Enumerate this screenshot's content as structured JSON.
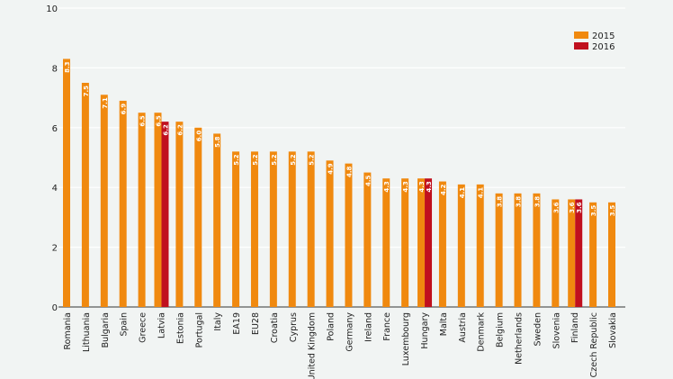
{
  "chart_data": {
    "type": "bar",
    "title": "",
    "xlabel": "",
    "ylabel": "",
    "ylim": [
      0,
      10
    ],
    "yticks": [
      0,
      2,
      4,
      6,
      8,
      10
    ],
    "grid": true,
    "legend_position": "top-right",
    "categories": [
      "Romania",
      "Lithuania",
      "Bulgaria",
      "Spain",
      "Greece",
      "Latvia",
      "Estonia",
      "Portugal",
      "Italy",
      "EA19",
      "EU28",
      "Croatia",
      "Cyprus",
      "United Kingdom",
      "Poland",
      "Germany",
      "Ireland",
      "France",
      "Luxembourg",
      "Hungary",
      "Malta",
      "Austria",
      "Denmark",
      "Belgium",
      "Netherlands",
      "Sweden",
      "Slovenia",
      "Finland",
      "Czech Republic",
      "Slovakia"
    ],
    "series": [
      {
        "name": "2015",
        "color": "#f0890f",
        "values": [
          8.3,
          7.5,
          7.1,
          6.9,
          6.5,
          6.5,
          6.2,
          6.0,
          5.8,
          5.2,
          5.2,
          5.2,
          5.2,
          5.2,
          4.9,
          4.8,
          4.5,
          4.3,
          4.3,
          4.3,
          4.2,
          4.1,
          4.1,
          3.8,
          3.8,
          3.8,
          3.6,
          3.6,
          3.5,
          3.5
        ]
      },
      {
        "name": "2016",
        "color": "#c0101e",
        "values": [
          null,
          null,
          null,
          null,
          null,
          6.2,
          null,
          null,
          null,
          null,
          null,
          null,
          null,
          null,
          null,
          null,
          null,
          null,
          null,
          4.3,
          null,
          null,
          null,
          null,
          null,
          null,
          null,
          3.6,
          null,
          null
        ]
      }
    ]
  }
}
